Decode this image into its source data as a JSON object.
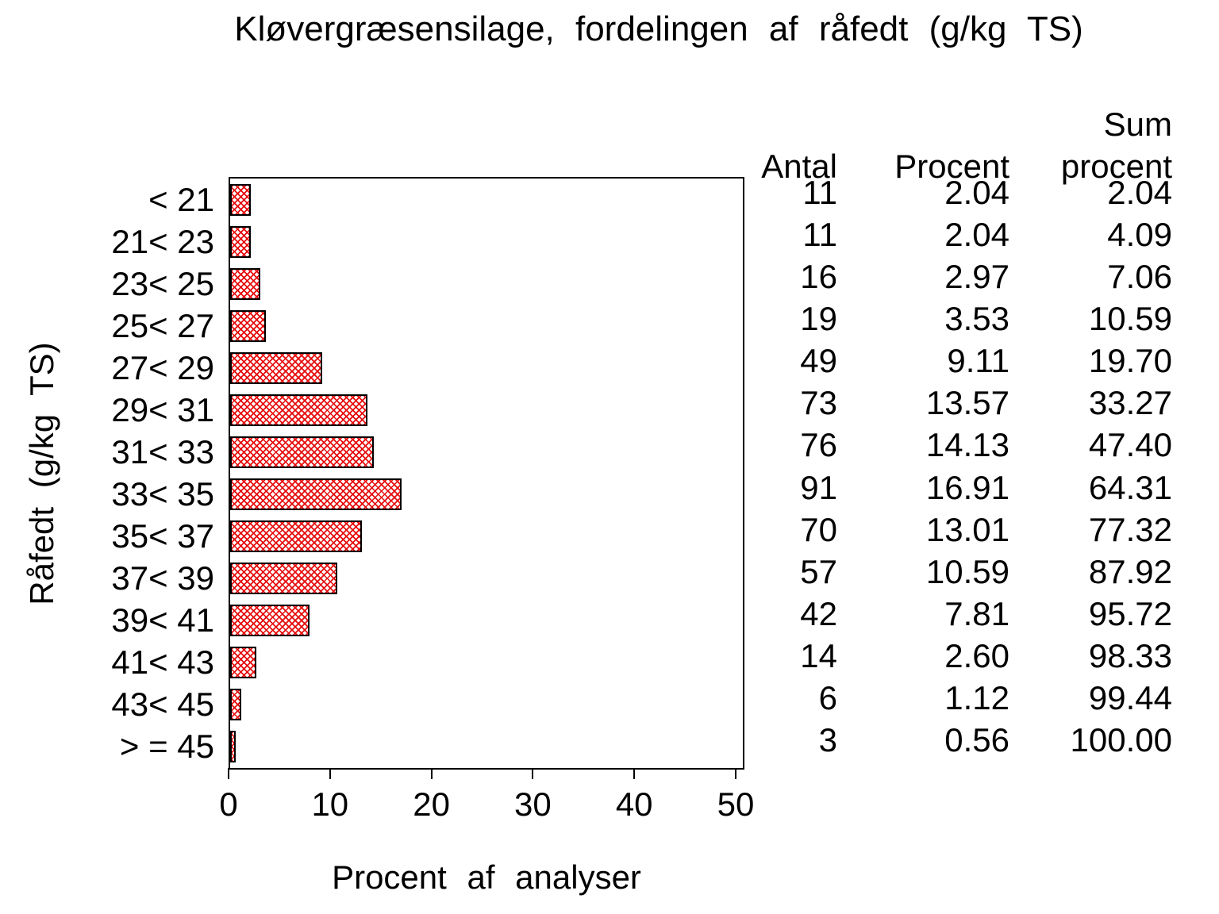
{
  "title": "Kløvergræsensilage, fordelingen af råfedt (g/kg TS)",
  "y_axis_label": "Råfedt (g/kg TS)",
  "x_axis_label": "Procent af analyser",
  "table": {
    "headers": {
      "antal": "Antal",
      "procent": "Procent",
      "sum_line1": "Sum",
      "sum_line2": "procent"
    },
    "rows": [
      {
        "antal": "11",
        "procent": "2.04",
        "sum": "2.04"
      },
      {
        "antal": "11",
        "procent": "2.04",
        "sum": "4.09"
      },
      {
        "antal": "16",
        "procent": "2.97",
        "sum": "7.06"
      },
      {
        "antal": "19",
        "procent": "3.53",
        "sum": "10.59"
      },
      {
        "antal": "49",
        "procent": "9.11",
        "sum": "19.70"
      },
      {
        "antal": "73",
        "procent": "13.57",
        "sum": "33.27"
      },
      {
        "antal": "76",
        "procent": "14.13",
        "sum": "47.40"
      },
      {
        "antal": "91",
        "procent": "16.91",
        "sum": "64.31"
      },
      {
        "antal": "70",
        "procent": "13.01",
        "sum": "77.32"
      },
      {
        "antal": "57",
        "procent": "10.59",
        "sum": "87.92"
      },
      {
        "antal": "42",
        "procent": "7.81",
        "sum": "95.72"
      },
      {
        "antal": "14",
        "procent": "2.60",
        "sum": "98.33"
      },
      {
        "antal": "6",
        "procent": "1.12",
        "sum": "99.44"
      },
      {
        "antal": "3",
        "procent": "0.56",
        "sum": "100.00"
      }
    ]
  },
  "chart_data": {
    "type": "bar",
    "orientation": "horizontal",
    "title": "Kløvergræsensilage, fordelingen af råfedt (g/kg TS)",
    "xlabel": "Procent af analyser",
    "ylabel": "Råfedt (g/kg TS)",
    "categories": [
      "< 21",
      "21< 23",
      "23< 25",
      "25< 27",
      "27< 29",
      "29< 31",
      "31< 33",
      "33< 35",
      "35< 37",
      "37< 39",
      "39< 41",
      "41< 43",
      "43< 45",
      "> = 45"
    ],
    "series": [
      {
        "name": "Antal",
        "values": [
          11,
          11,
          16,
          19,
          49,
          73,
          76,
          91,
          70,
          57,
          42,
          14,
          6,
          3
        ]
      },
      {
        "name": "Procent",
        "values": [
          2.04,
          2.04,
          2.97,
          3.53,
          9.11,
          13.57,
          14.13,
          16.91,
          13.01,
          10.59,
          7.81,
          2.6,
          1.12,
          0.56
        ]
      },
      {
        "name": "Sum procent",
        "values": [
          2.04,
          4.09,
          7.06,
          10.59,
          19.7,
          33.27,
          47.4,
          64.31,
          77.32,
          87.92,
          95.72,
          98.33,
          99.44,
          100.0
        ]
      }
    ],
    "bar_series": "Procent",
    "xlim": [
      0,
      50.9
    ],
    "x_tick_labels": [
      "0",
      "10",
      "20",
      "30",
      "40",
      "50"
    ],
    "x_tick_values": [
      0,
      10,
      20,
      30,
      40,
      50
    ],
    "grid": false,
    "legend": "none",
    "bar_pattern": "diagonal-crosshatch",
    "bar_color": "#e60c0c",
    "bar_border_color": "#000000",
    "axis_color": "#000000",
    "background_color": "#ffffff"
  }
}
